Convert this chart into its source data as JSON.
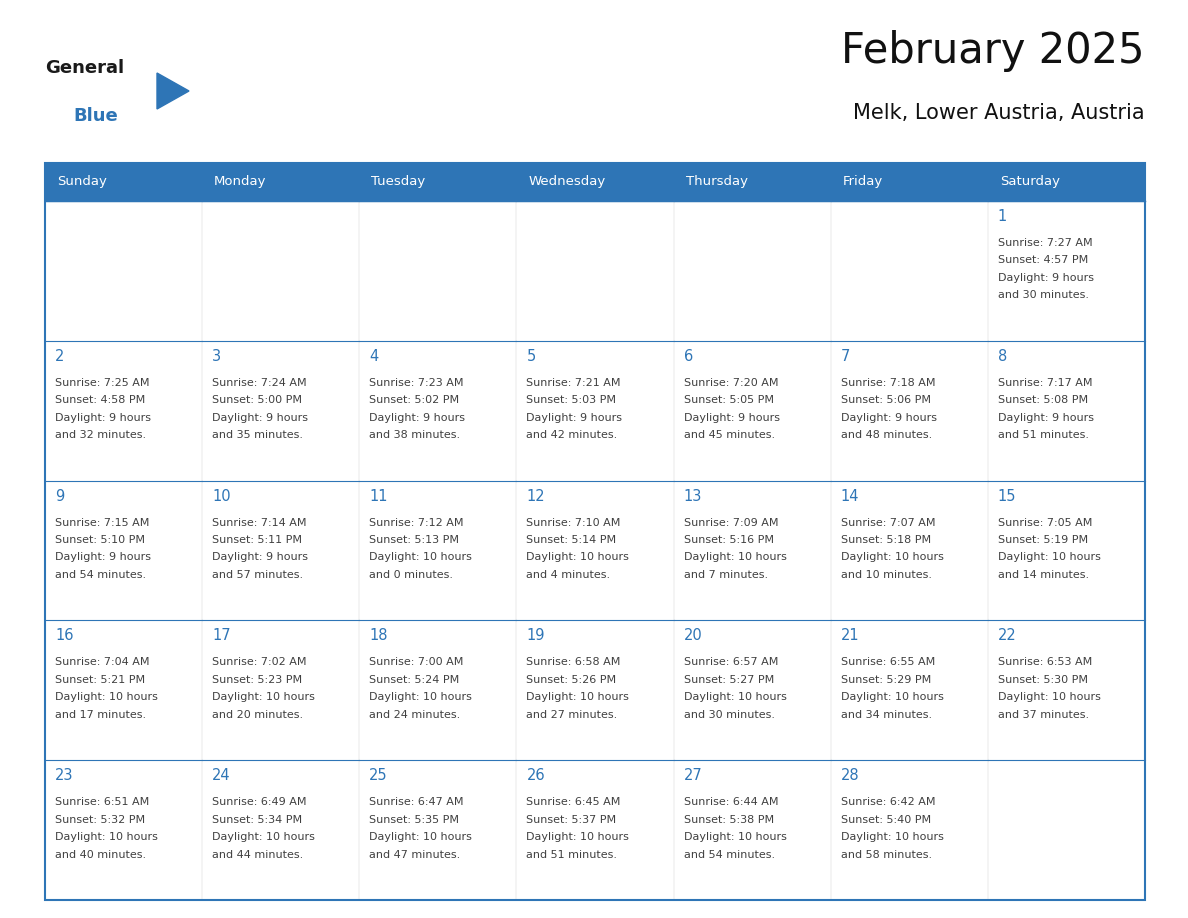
{
  "title": "February 2025",
  "subtitle": "Melk, Lower Austria, Austria",
  "header_bg": "#2E75B6",
  "header_text_color": "#FFFFFF",
  "cell_bg": "#FFFFFF",
  "cell_alt_bg": "#F2F2F2",
  "cell_border_color": "#2E75B6",
  "day_num_color": "#2E75B6",
  "cell_text_color": "#404040",
  "days_of_week": [
    "Sunday",
    "Monday",
    "Tuesday",
    "Wednesday",
    "Thursday",
    "Friday",
    "Saturday"
  ],
  "logo_general_color": "#1a1a1a",
  "logo_blue_color": "#2E75B6",
  "calendar": [
    [
      null,
      null,
      null,
      null,
      null,
      null,
      {
        "day": 1,
        "sunrise": "7:27 AM",
        "sunset": "4:57 PM",
        "daylight": "9 hours",
        "daylight2": "and 30 minutes."
      }
    ],
    [
      {
        "day": 2,
        "sunrise": "7:25 AM",
        "sunset": "4:58 PM",
        "daylight": "9 hours",
        "daylight2": "and 32 minutes."
      },
      {
        "day": 3,
        "sunrise": "7:24 AM",
        "sunset": "5:00 PM",
        "daylight": "9 hours",
        "daylight2": "and 35 minutes."
      },
      {
        "day": 4,
        "sunrise": "7:23 AM",
        "sunset": "5:02 PM",
        "daylight": "9 hours",
        "daylight2": "and 38 minutes."
      },
      {
        "day": 5,
        "sunrise": "7:21 AM",
        "sunset": "5:03 PM",
        "daylight": "9 hours",
        "daylight2": "and 42 minutes."
      },
      {
        "day": 6,
        "sunrise": "7:20 AM",
        "sunset": "5:05 PM",
        "daylight": "9 hours",
        "daylight2": "and 45 minutes."
      },
      {
        "day": 7,
        "sunrise": "7:18 AM",
        "sunset": "5:06 PM",
        "daylight": "9 hours",
        "daylight2": "and 48 minutes."
      },
      {
        "day": 8,
        "sunrise": "7:17 AM",
        "sunset": "5:08 PM",
        "daylight": "9 hours",
        "daylight2": "and 51 minutes."
      }
    ],
    [
      {
        "day": 9,
        "sunrise": "7:15 AM",
        "sunset": "5:10 PM",
        "daylight": "9 hours",
        "daylight2": "and 54 minutes."
      },
      {
        "day": 10,
        "sunrise": "7:14 AM",
        "sunset": "5:11 PM",
        "daylight": "9 hours",
        "daylight2": "and 57 minutes."
      },
      {
        "day": 11,
        "sunrise": "7:12 AM",
        "sunset": "5:13 PM",
        "daylight": "10 hours",
        "daylight2": "and 0 minutes."
      },
      {
        "day": 12,
        "sunrise": "7:10 AM",
        "sunset": "5:14 PM",
        "daylight": "10 hours",
        "daylight2": "and 4 minutes."
      },
      {
        "day": 13,
        "sunrise": "7:09 AM",
        "sunset": "5:16 PM",
        "daylight": "10 hours",
        "daylight2": "and 7 minutes."
      },
      {
        "day": 14,
        "sunrise": "7:07 AM",
        "sunset": "5:18 PM",
        "daylight": "10 hours",
        "daylight2": "and 10 minutes."
      },
      {
        "day": 15,
        "sunrise": "7:05 AM",
        "sunset": "5:19 PM",
        "daylight": "10 hours",
        "daylight2": "and 14 minutes."
      }
    ],
    [
      {
        "day": 16,
        "sunrise": "7:04 AM",
        "sunset": "5:21 PM",
        "daylight": "10 hours",
        "daylight2": "and 17 minutes."
      },
      {
        "day": 17,
        "sunrise": "7:02 AM",
        "sunset": "5:23 PM",
        "daylight": "10 hours",
        "daylight2": "and 20 minutes."
      },
      {
        "day": 18,
        "sunrise": "7:00 AM",
        "sunset": "5:24 PM",
        "daylight": "10 hours",
        "daylight2": "and 24 minutes."
      },
      {
        "day": 19,
        "sunrise": "6:58 AM",
        "sunset": "5:26 PM",
        "daylight": "10 hours",
        "daylight2": "and 27 minutes."
      },
      {
        "day": 20,
        "sunrise": "6:57 AM",
        "sunset": "5:27 PM",
        "daylight": "10 hours",
        "daylight2": "and 30 minutes."
      },
      {
        "day": 21,
        "sunrise": "6:55 AM",
        "sunset": "5:29 PM",
        "daylight": "10 hours",
        "daylight2": "and 34 minutes."
      },
      {
        "day": 22,
        "sunrise": "6:53 AM",
        "sunset": "5:30 PM",
        "daylight": "10 hours",
        "daylight2": "and 37 minutes."
      }
    ],
    [
      {
        "day": 23,
        "sunrise": "6:51 AM",
        "sunset": "5:32 PM",
        "daylight": "10 hours",
        "daylight2": "and 40 minutes."
      },
      {
        "day": 24,
        "sunrise": "6:49 AM",
        "sunset": "5:34 PM",
        "daylight": "10 hours",
        "daylight2": "and 44 minutes."
      },
      {
        "day": 25,
        "sunrise": "6:47 AM",
        "sunset": "5:35 PM",
        "daylight": "10 hours",
        "daylight2": "and 47 minutes."
      },
      {
        "day": 26,
        "sunrise": "6:45 AM",
        "sunset": "5:37 PM",
        "daylight": "10 hours",
        "daylight2": "and 51 minutes."
      },
      {
        "day": 27,
        "sunrise": "6:44 AM",
        "sunset": "5:38 PM",
        "daylight": "10 hours",
        "daylight2": "and 54 minutes."
      },
      {
        "day": 28,
        "sunrise": "6:42 AM",
        "sunset": "5:40 PM",
        "daylight": "10 hours",
        "daylight2": "and 58 minutes."
      },
      null
    ]
  ]
}
